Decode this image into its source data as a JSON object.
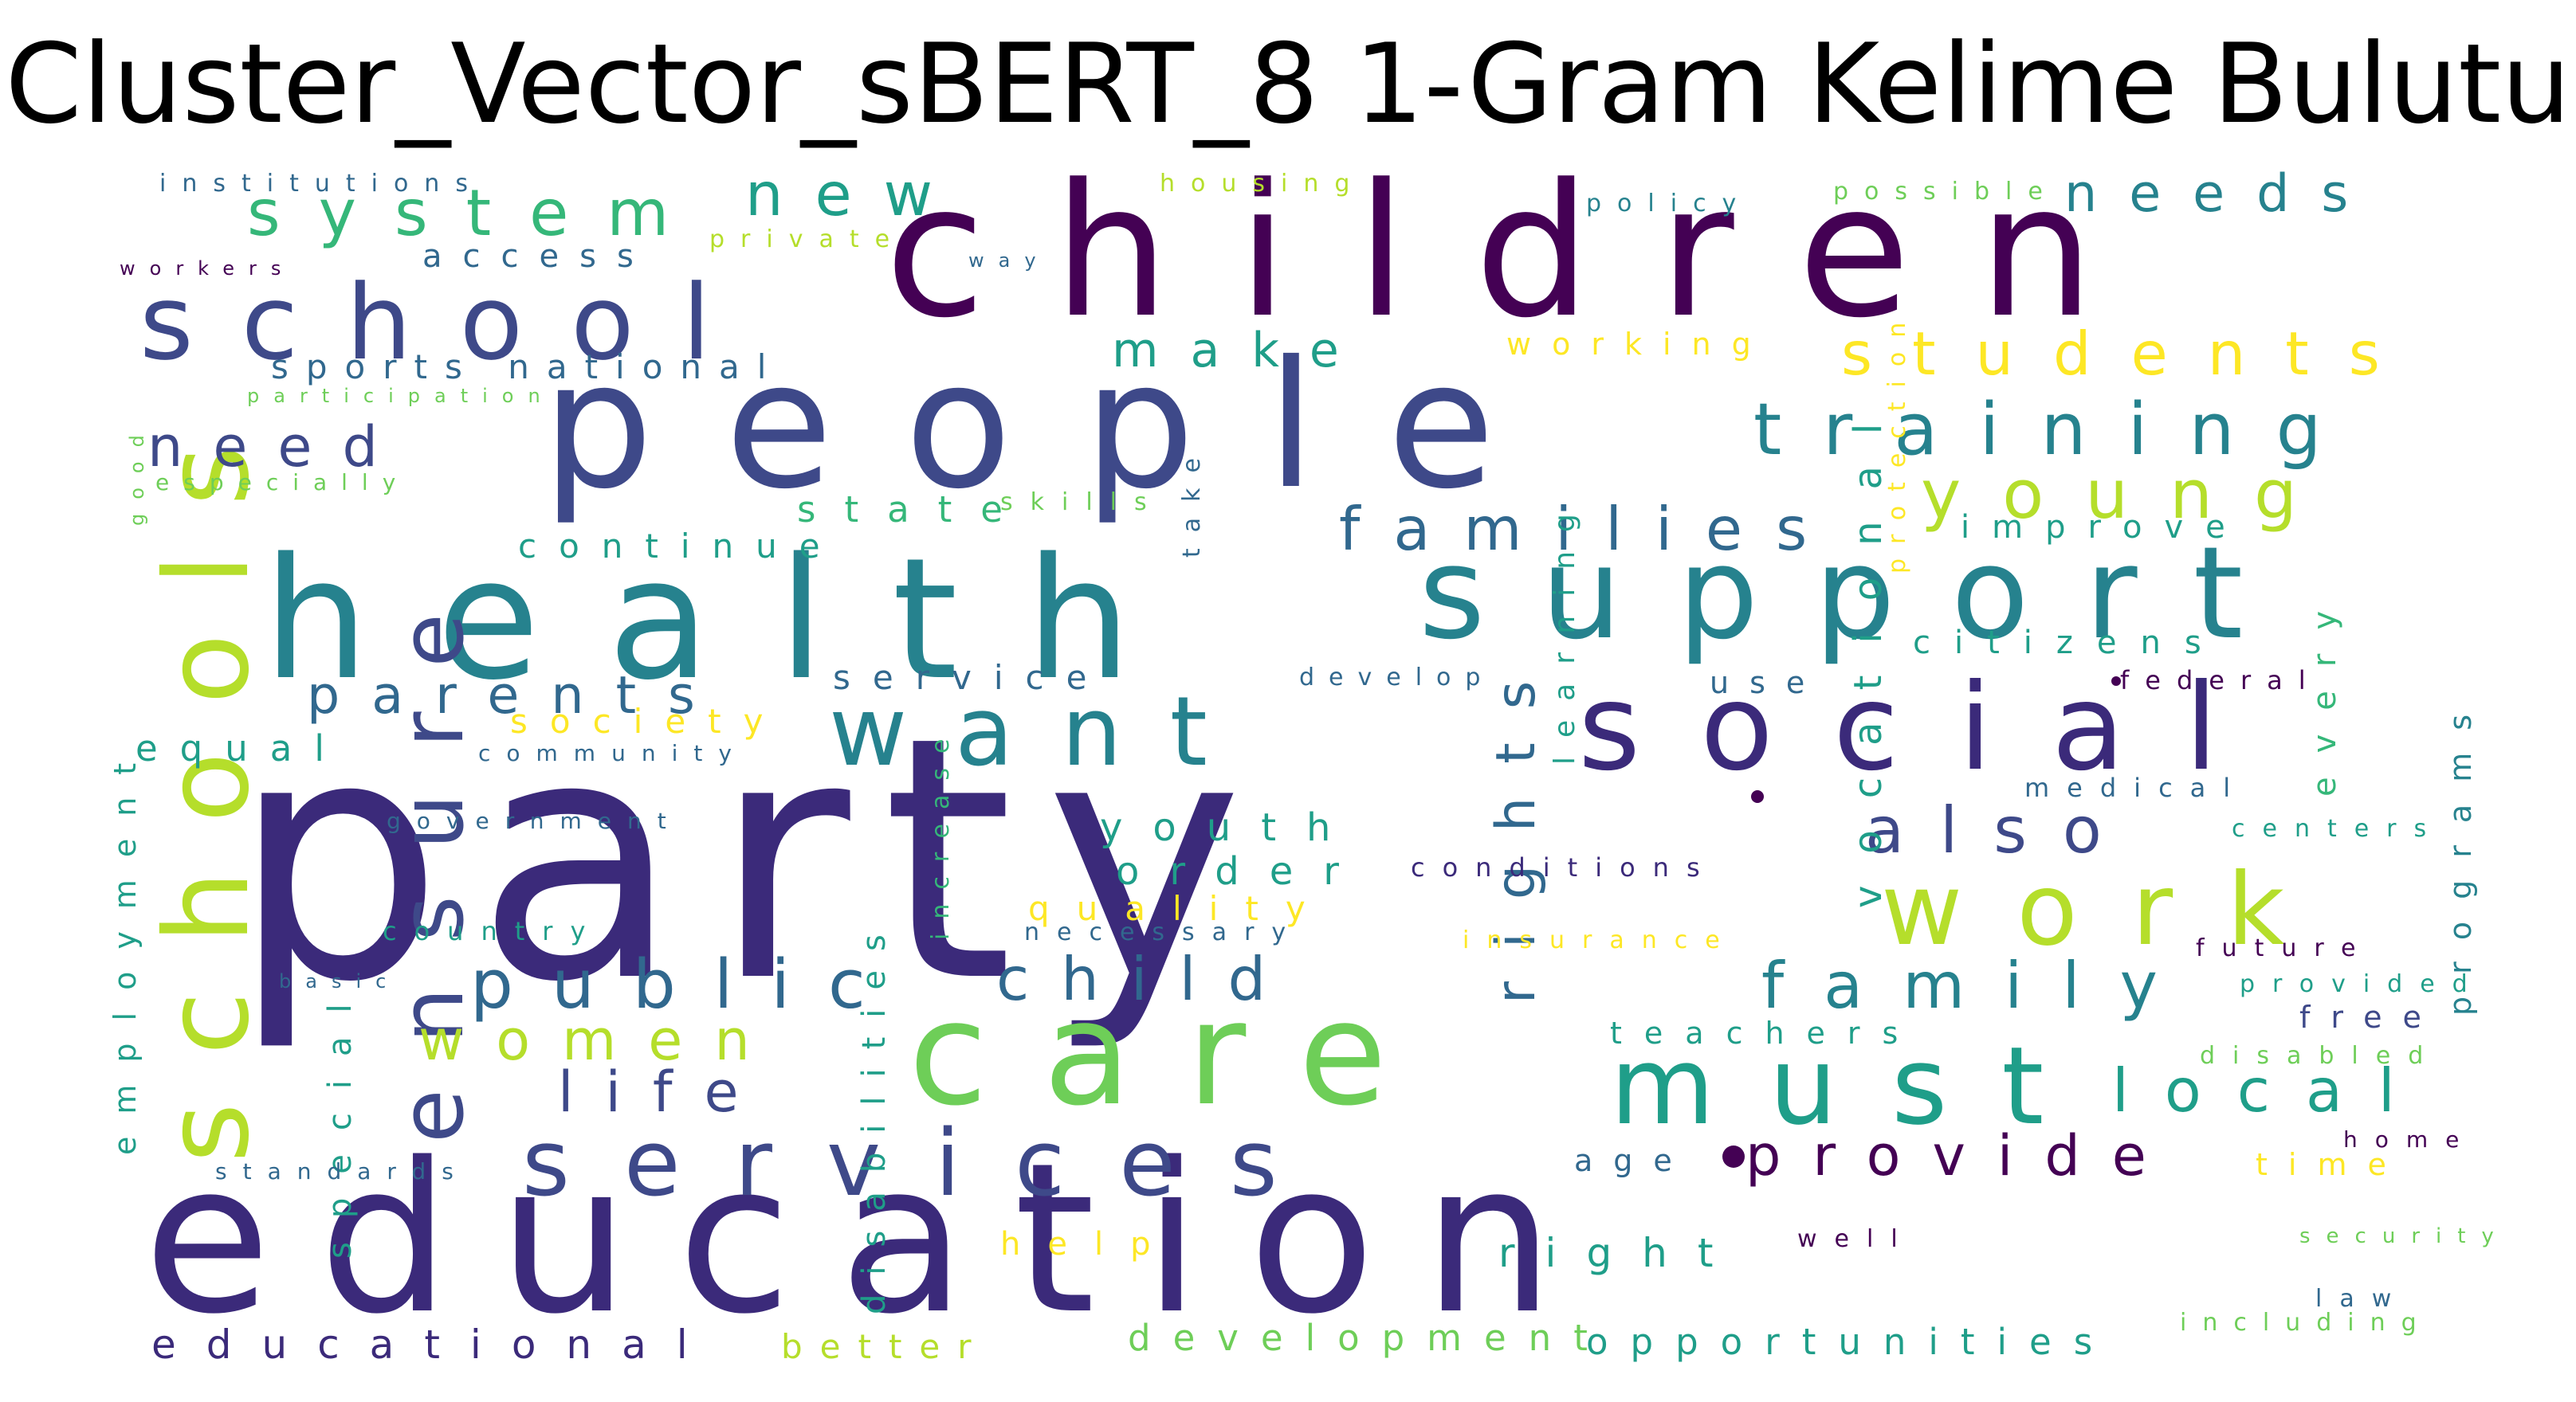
{
  "title": "Cluster_Vector_sBERT_8 1-Gram Kelime Bulutu",
  "colors": {
    "dark_purple": "#440154",
    "indigo": "#3b2a7a",
    "navy": "#3e4989",
    "blue": "#31688e",
    "teal": "#26828e",
    "sea": "#1f9e89",
    "green": "#35b779",
    "lime": "#6ece58",
    "yellowgreen": "#b5de2b",
    "yellow": "#fde725"
  },
  "words": [
    {
      "id": "party",
      "text": "party"
    },
    {
      "id": "education",
      "text": "education"
    },
    {
      "id": "children",
      "text": "children"
    },
    {
      "id": "people",
      "text": "people"
    },
    {
      "id": "health",
      "text": "health"
    },
    {
      "id": "support",
      "text": "support"
    },
    {
      "id": "care",
      "text": "care"
    },
    {
      "id": "social",
      "text": "social"
    },
    {
      "id": "school",
      "text": "school"
    },
    {
      "id": "services",
      "text": "services"
    },
    {
      "id": "want",
      "text": "want"
    },
    {
      "id": "must",
      "text": "must"
    },
    {
      "id": "work",
      "text": "work"
    },
    {
      "id": "schools",
      "text": "schools"
    },
    {
      "id": "training",
      "text": "training"
    },
    {
      "id": "ensure",
      "text": "ensure"
    },
    {
      "id": "students",
      "text": "students"
    },
    {
      "id": "young",
      "text": "young"
    },
    {
      "id": "families",
      "text": "families"
    },
    {
      "id": "family",
      "text": "family"
    },
    {
      "id": "public",
      "text": "public"
    },
    {
      "id": "child",
      "text": "child"
    },
    {
      "id": "system",
      "text": "system"
    },
    {
      "id": "also",
      "text": "also"
    },
    {
      "id": "local",
      "text": "local"
    },
    {
      "id": "provide",
      "text": "provide"
    },
    {
      "id": "parents",
      "text": "parents"
    },
    {
      "id": "women",
      "text": "women"
    },
    {
      "id": "life",
      "text": "life"
    },
    {
      "id": "new",
      "text": "new"
    },
    {
      "id": "needs",
      "text": "needs"
    },
    {
      "id": "need",
      "text": "need"
    },
    {
      "id": "make",
      "text": "make"
    },
    {
      "id": "rights",
      "text": "rights"
    },
    {
      "id": "educational",
      "text": "educational"
    },
    {
      "id": "opportunities",
      "text": "opportunities"
    },
    {
      "id": "development",
      "text": "development"
    },
    {
      "id": "vocational",
      "text": "vocational"
    },
    {
      "id": "disabilities",
      "text": "disabilities"
    },
    {
      "id": "employment",
      "text": "employment"
    },
    {
      "id": "special",
      "text": "special"
    },
    {
      "id": "youth",
      "text": "youth"
    },
    {
      "id": "order",
      "text": "order"
    },
    {
      "id": "quality",
      "text": "quality"
    },
    {
      "id": "right",
      "text": "right"
    },
    {
      "id": "help",
      "text": "help"
    },
    {
      "id": "better",
      "text": "better"
    },
    {
      "id": "continue",
      "text": "continue"
    },
    {
      "id": "state",
      "text": "state"
    },
    {
      "id": "service",
      "text": "service"
    },
    {
      "id": "society",
      "text": "society"
    },
    {
      "id": "equal",
      "text": "equal"
    },
    {
      "id": "sports_national",
      "text": "sports national"
    },
    {
      "id": "access",
      "text": "access"
    },
    {
      "id": "working",
      "text": "working"
    },
    {
      "id": "improve",
      "text": "improve"
    },
    {
      "id": "citizens",
      "text": "citizens"
    },
    {
      "id": "every",
      "text": "every"
    },
    {
      "id": "programs",
      "text": "programs"
    },
    {
      "id": "teachers",
      "text": "teachers"
    },
    {
      "id": "learning",
      "text": "learning"
    },
    {
      "id": "protection",
      "text": "protection"
    },
    {
      "id": "take",
      "text": "take"
    },
    {
      "id": "increase",
      "text": "increase"
    },
    {
      "id": "age",
      "text": "age"
    },
    {
      "id": "time",
      "text": "time"
    },
    {
      "id": "free",
      "text": "free"
    },
    {
      "id": "use",
      "text": "use"
    },
    {
      "id": "federal",
      "text": "federal"
    },
    {
      "id": "develop",
      "text": "develop"
    },
    {
      "id": "medical",
      "text": "medical"
    },
    {
      "id": "centers",
      "text": "centers"
    },
    {
      "id": "future",
      "text": "future"
    },
    {
      "id": "provided",
      "text": "provided"
    },
    {
      "id": "disabled",
      "text": "disabled"
    },
    {
      "id": "home",
      "text": "home"
    },
    {
      "id": "security",
      "text": "security"
    },
    {
      "id": "law",
      "text": "law"
    },
    {
      "id": "including",
      "text": "including"
    },
    {
      "id": "well",
      "text": "well"
    },
    {
      "id": "conditions",
      "text": "conditions"
    },
    {
      "id": "insurance",
      "text": "insurance"
    },
    {
      "id": "necessary",
      "text": "necessary"
    },
    {
      "id": "country",
      "text": "country"
    },
    {
      "id": "government",
      "text": "government"
    },
    {
      "id": "community",
      "text": "community"
    },
    {
      "id": "basic",
      "text": "basic"
    },
    {
      "id": "standards",
      "text": "standards"
    },
    {
      "id": "skills",
      "text": "skills"
    },
    {
      "id": "institutions",
      "text": "institutions"
    },
    {
      "id": "housing",
      "text": "housing"
    },
    {
      "id": "policy",
      "text": "policy"
    },
    {
      "id": "possible",
      "text": "possible"
    },
    {
      "id": "private",
      "text": "private"
    },
    {
      "id": "way",
      "text": "way"
    },
    {
      "id": "workers",
      "text": "workers"
    },
    {
      "id": "participation",
      "text": "participation"
    },
    {
      "id": "good",
      "text": "good"
    },
    {
      "id": "especially",
      "text": "especially"
    }
  ]
}
